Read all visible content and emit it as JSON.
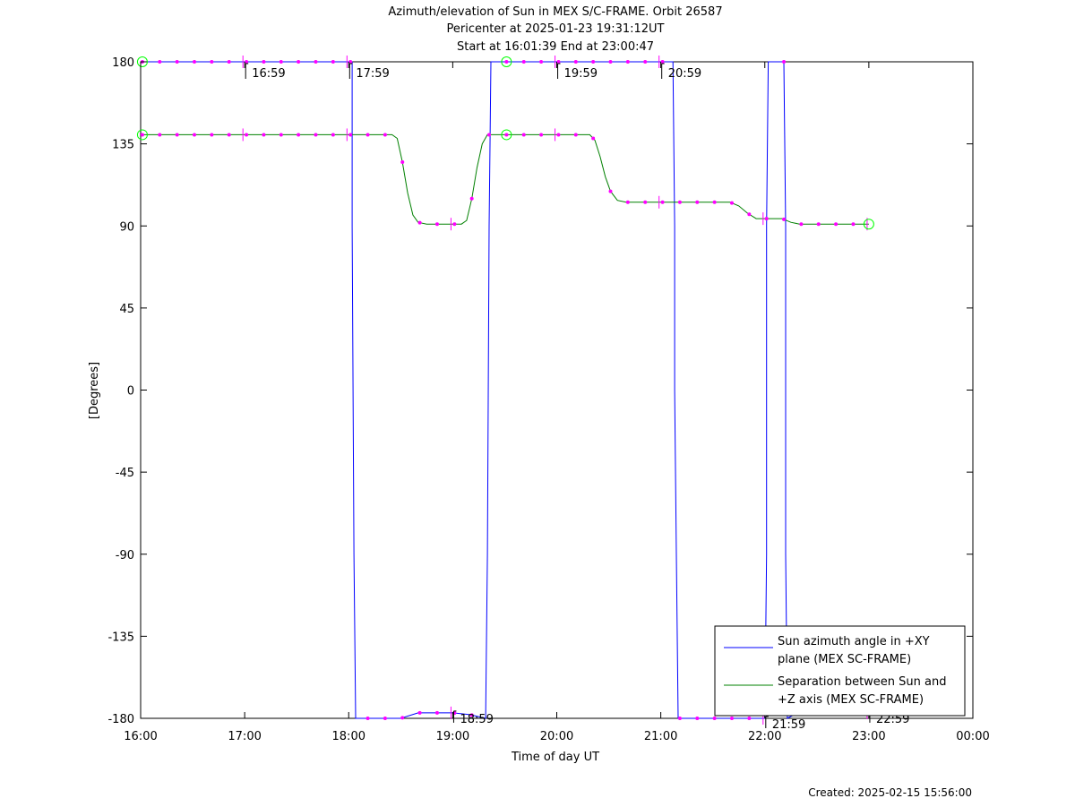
{
  "chart_data": {
    "type": "line",
    "title_lines": [
      "Azimuth/elevation of Sun in MEX S/C-FRAME.  Orbit 26587",
      "Pericenter at 2025-01-23 19:31:12UT",
      "Start at 16:01:39 End at 23:00:47"
    ],
    "xlabel": "Time of day UT",
    "ylabel": "[Degrees]",
    "xlim": [
      "16:00",
      "00:00"
    ],
    "ylim": [
      -180,
      180
    ],
    "x_ticks": [
      "16:00",
      "17:00",
      "18:00",
      "19:00",
      "20:00",
      "21:00",
      "22:00",
      "23:00",
      "00:00"
    ],
    "y_ticks": [
      180,
      135,
      90,
      45,
      0,
      -45,
      -90,
      -135,
      -180
    ],
    "hour_marker_labels": [
      "16:59",
      "17:59",
      "18:59",
      "19:59",
      "20:59",
      "21:59",
      "22:59"
    ],
    "footer": "Created: 2025-02-15 15:56:00",
    "legend_position": "bottom-right",
    "colors": {
      "azimuth": "#0000ff",
      "separation": "#008000",
      "markers": "#ff00ff",
      "endpoints": "#00ff00"
    },
    "series": [
      {
        "name": "Sun azimuth angle in +XY plane (MEX SC-FRAME)",
        "legend_lines": [
          "Sun azimuth angle in +XY",
          "plane (MEX SC-FRAME)"
        ],
        "color": "#0000ff",
        "points": [
          [
            "16:01",
            180
          ],
          [
            "18:02",
            180
          ],
          [
            "18:02",
            90
          ],
          [
            "18:03",
            -90
          ],
          [
            "18:04",
            -180
          ],
          [
            "18:30",
            -180
          ],
          [
            "18:40",
            -177
          ],
          [
            "19:00",
            -177
          ],
          [
            "19:10",
            -178
          ],
          [
            "19:19",
            -180
          ],
          [
            "19:20",
            -90
          ],
          [
            "19:21",
            90
          ],
          [
            "19:22",
            180
          ],
          [
            "21:07",
            180
          ],
          [
            "21:08",
            90
          ],
          [
            "21:08",
            0
          ],
          [
            "21:09",
            -90
          ],
          [
            "21:10",
            -180
          ],
          [
            "22:00",
            -180
          ],
          [
            "22:01",
            -90
          ],
          [
            "22:01",
            90
          ],
          [
            "22:02",
            180
          ],
          [
            "22:11",
            180
          ],
          [
            "22:12",
            90
          ],
          [
            "22:12",
            -90
          ],
          [
            "22:13",
            -180
          ],
          [
            "22:19",
            -177
          ],
          [
            "23:00",
            -177
          ]
        ]
      },
      {
        "name": "Separation between Sun and +Z axis (MEX SC-FRAME)",
        "legend_lines": [
          "Separation between Sun and",
          "+Z axis (MEX SC-FRAME)"
        ],
        "color": "#008000",
        "points": [
          [
            "16:01",
            140
          ],
          [
            "18:25",
            140
          ],
          [
            "18:28",
            138
          ],
          [
            "18:31",
            125
          ],
          [
            "18:34",
            108
          ],
          [
            "18:37",
            96
          ],
          [
            "18:40",
            92
          ],
          [
            "18:45",
            91
          ],
          [
            "19:05",
            91
          ],
          [
            "19:08",
            93
          ],
          [
            "19:11",
            105
          ],
          [
            "19:14",
            122
          ],
          [
            "19:17",
            135
          ],
          [
            "19:20",
            140
          ],
          [
            "20:19",
            140
          ],
          [
            "20:22",
            137
          ],
          [
            "20:25",
            128
          ],
          [
            "20:28",
            117
          ],
          [
            "20:31",
            109
          ],
          [
            "20:35",
            104
          ],
          [
            "20:40",
            103
          ],
          [
            "21:40",
            103
          ],
          [
            "21:45",
            101
          ],
          [
            "21:50",
            97
          ],
          [
            "21:55",
            94
          ],
          [
            "22:10",
            94
          ],
          [
            "22:15",
            92
          ],
          [
            "22:20",
            91
          ],
          [
            "23:00",
            91
          ]
        ]
      }
    ]
  }
}
